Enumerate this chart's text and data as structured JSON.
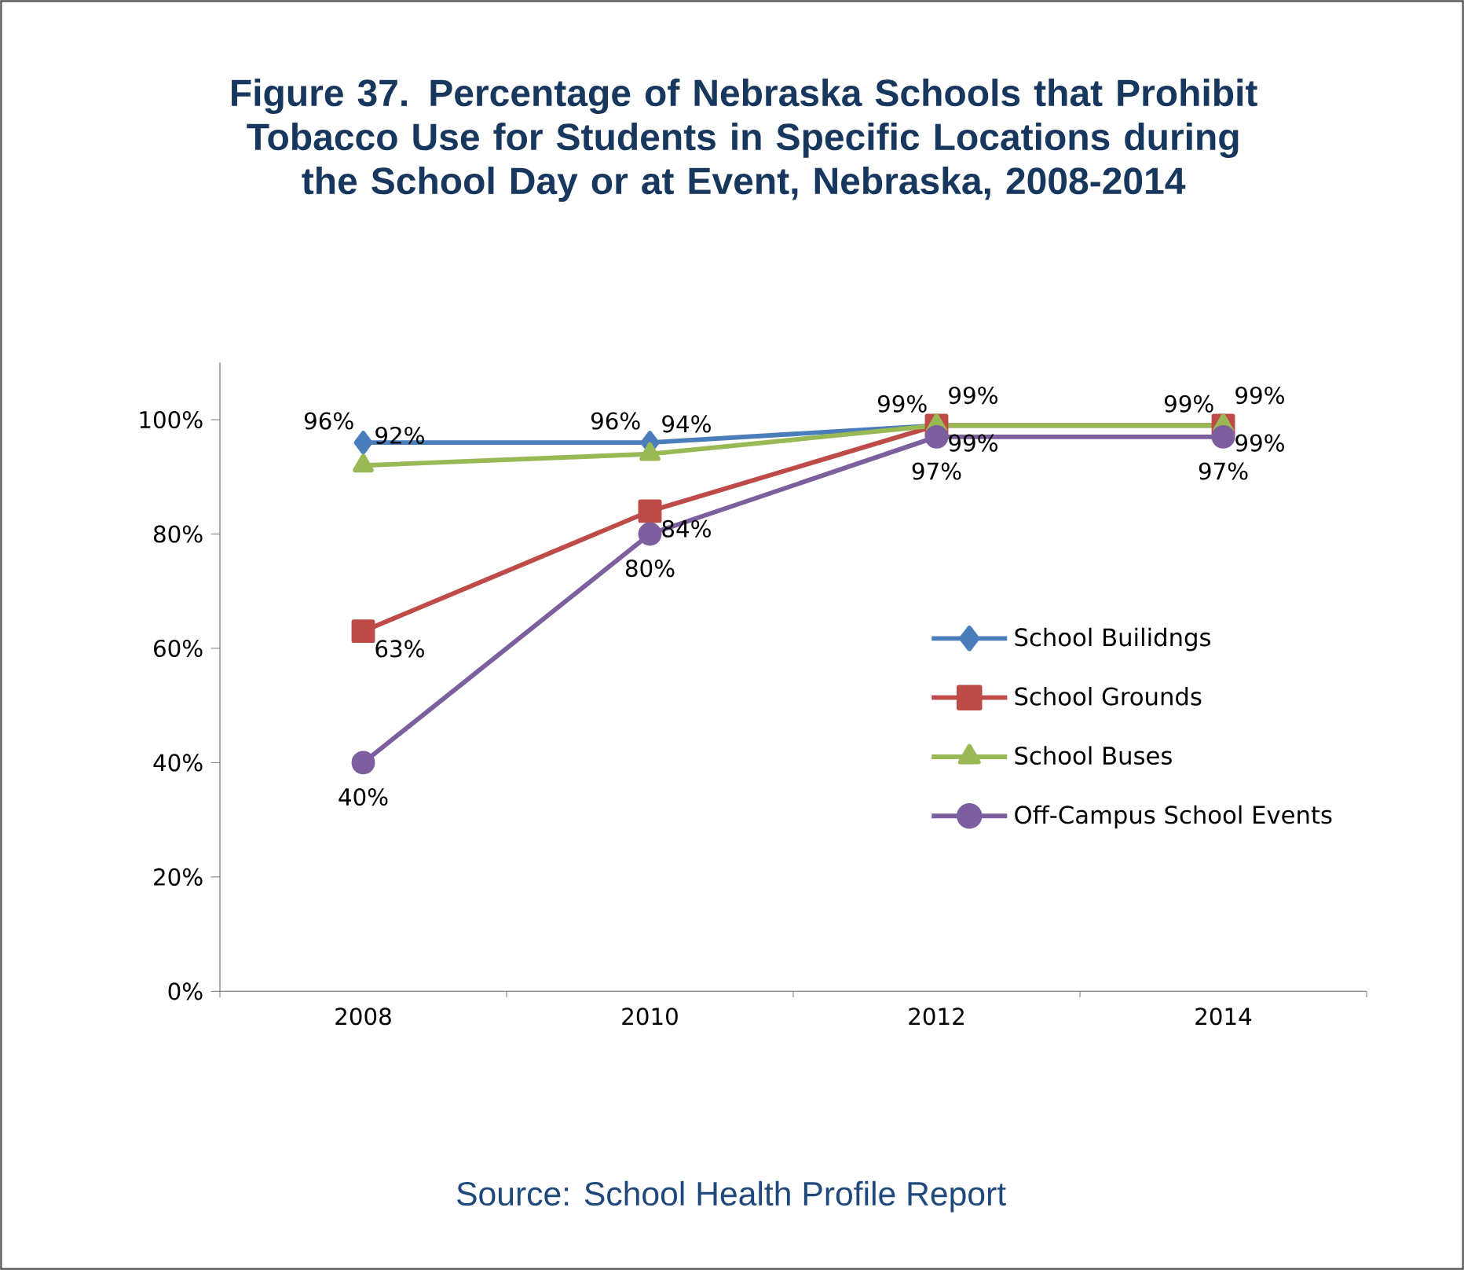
{
  "chart_data": {
    "type": "line",
    "title": "Figure 37. Percentage of Nebraska Schools that Prohibit Tobacco Use for Students in Specific Locations during the School Day or at Event, Nebraska, 2008-2014",
    "categories": [
      "2008",
      "2010",
      "2012",
      "2014"
    ],
    "series": [
      {
        "name": "School Builidngs",
        "color": "#4a7ebb",
        "marker": "diamond",
        "values": [
          96,
          96,
          99,
          99
        ],
        "value_labels": [
          "96%",
          "96%",
          "99%",
          "99%"
        ]
      },
      {
        "name": "School Grounds",
        "color": "#be4b48",
        "marker": "square",
        "values": [
          63,
          84,
          99,
          99
        ],
        "value_labels": [
          "63%",
          "84%",
          "99%",
          "99%"
        ]
      },
      {
        "name": "School Buses",
        "color": "#98b954",
        "marker": "triangle",
        "values": [
          92,
          94,
          99,
          99
        ],
        "value_labels": [
          "92%",
          "94%",
          "99%",
          "99%"
        ]
      },
      {
        "name": "Off-Campus School Events",
        "color": "#7d5fa0",
        "marker": "circle",
        "values": [
          40,
          80,
          97,
          97
        ],
        "value_labels": [
          "40%",
          "80%",
          "97%",
          "97%"
        ]
      }
    ],
    "ylim": [
      0,
      110
    ],
    "yticks": [
      {
        "value": 0,
        "label": "0%"
      },
      {
        "value": 20,
        "label": "20%"
      },
      {
        "value": 40,
        "label": "40%"
      },
      {
        "value": 60,
        "label": "60%"
      },
      {
        "value": 80,
        "label": "80%"
      },
      {
        "value": 100,
        "label": "100%"
      }
    ],
    "legend": "right",
    "grid": false,
    "annotations": [
      "Source: School Health Profile Report"
    ]
  }
}
